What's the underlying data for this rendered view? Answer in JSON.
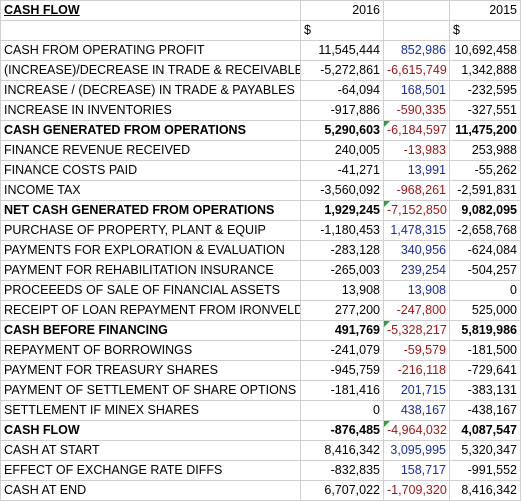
{
  "sheet": {
    "header": {
      "label": "CASH FLOW",
      "year_2016": "2016",
      "diff": "",
      "year_2015": "2015"
    },
    "currency_row": {
      "label": "",
      "c2016": "$",
      "diff": "",
      "c2015": "$"
    },
    "rows": [
      {
        "label": "CASH FROM OPERATING PROFIT",
        "v2016": "11,545,444",
        "diff": "852,986",
        "diff_sign": "pos",
        "v2015": "10,692,458",
        "bold": false,
        "flag": false
      },
      {
        "label": "(INCREASE)/DECREASE IN TRADE & RECEIVABLES",
        "v2016": "-5,272,861",
        "diff": "-6,615,749",
        "diff_sign": "neg",
        "v2015": "1,342,888",
        "bold": false,
        "flag": false
      },
      {
        "label": "INCREASE / (DECREASE) IN TRADE & PAYABLES",
        "v2016": "-64,094",
        "diff": "168,501",
        "diff_sign": "pos",
        "v2015": "-232,595",
        "bold": false,
        "flag": false
      },
      {
        "label": "INCREASE IN INVENTORIES",
        "v2016": "-917,886",
        "diff": "-590,335",
        "diff_sign": "neg",
        "v2015": "-327,551",
        "bold": false,
        "flag": false
      },
      {
        "label": "CASH GENERATED FROM OPERATIONS",
        "v2016": "5,290,603",
        "diff": "-6,184,597",
        "diff_sign": "neg",
        "v2015": "11,475,200",
        "bold": true,
        "flag": true
      },
      {
        "label": "FINANCE REVENUE RECEIVED",
        "v2016": "240,005",
        "diff": "-13,983",
        "diff_sign": "neg",
        "v2015": "253,988",
        "bold": false,
        "flag": false
      },
      {
        "label": "FINANCE COSTS PAID",
        "v2016": "-41,271",
        "diff": "13,991",
        "diff_sign": "pos",
        "v2015": "-55,262",
        "bold": false,
        "flag": false
      },
      {
        "label": "INCOME TAX",
        "v2016": "-3,560,092",
        "diff": "-968,261",
        "diff_sign": "neg",
        "v2015": "-2,591,831",
        "bold": false,
        "flag": false
      },
      {
        "label": "NET CASH GENERATED FROM OPERATIONS",
        "v2016": "1,929,245",
        "diff": "-7,152,850",
        "diff_sign": "neg",
        "v2015": "9,082,095",
        "bold": true,
        "flag": true
      },
      {
        "label": "PURCHASE OF PROPERTY, PLANT & EQUIP",
        "v2016": "-1,180,453",
        "diff": "1,478,315",
        "diff_sign": "pos",
        "v2015": "-2,658,768",
        "bold": false,
        "flag": false
      },
      {
        "label": "PAYMENTS FOR EXPLORATION & EVALUATION",
        "v2016": "-283,128",
        "diff": "340,956",
        "diff_sign": "pos",
        "v2015": "-624,084",
        "bold": false,
        "flag": false
      },
      {
        "label": "PAYMENT FOR REHABILITATION INSURANCE",
        "v2016": "-265,003",
        "diff": "239,254",
        "diff_sign": "pos",
        "v2015": "-504,257",
        "bold": false,
        "flag": false
      },
      {
        "label": "PROCEEEDS OF SALE OF FINANCIAL ASSETS",
        "v2016": "13,908",
        "diff": "13,908",
        "diff_sign": "pos",
        "v2015": "0",
        "bold": false,
        "flag": false
      },
      {
        "label": "RECEIPT OF LOAN REPAYMENT FROM IRONVELD",
        "v2016": "277,200",
        "diff": "-247,800",
        "diff_sign": "neg",
        "v2015": "525,000",
        "bold": false,
        "flag": false
      },
      {
        "label": "CASH BEFORE FINANCING",
        "v2016": "491,769",
        "diff": "-5,328,217",
        "diff_sign": "neg",
        "v2015": "5,819,986",
        "bold": true,
        "flag": true
      },
      {
        "label": "REPAYMENT OF BORROWINGS",
        "v2016": "-241,079",
        "diff": "-59,579",
        "diff_sign": "neg",
        "v2015": "-181,500",
        "bold": false,
        "flag": false
      },
      {
        "label": "PAYMENT FOR TREASURY SHARES",
        "v2016": "-945,759",
        "diff": "-216,118",
        "diff_sign": "neg",
        "v2015": "-729,641",
        "bold": false,
        "flag": false
      },
      {
        "label": "PAYMENT OF SETTLEMENT OF SHARE OPTIONS",
        "v2016": "-181,416",
        "diff": "201,715",
        "diff_sign": "pos",
        "v2015": "-383,131",
        "bold": false,
        "flag": false
      },
      {
        "label": "SETTLEMENT IF MINEX SHARES",
        "v2016": "0",
        "diff": "438,167",
        "diff_sign": "pos",
        "v2015": "-438,167",
        "bold": false,
        "flag": false
      },
      {
        "label": "CASH FLOW",
        "v2016": "-876,485",
        "diff": "-4,964,032",
        "diff_sign": "neg",
        "v2015": "4,087,547",
        "bold": true,
        "flag": true
      },
      {
        "label": "CASH AT START",
        "v2016": "8,416,342",
        "diff": "3,095,995",
        "diff_sign": "pos",
        "v2015": "5,320,347",
        "bold": false,
        "flag": false
      },
      {
        "label": "EFFECT OF EXCHANGE RATE DIFFS",
        "v2016": "-832,835",
        "diff": "158,717",
        "diff_sign": "pos",
        "v2015": "-991,552",
        "bold": false,
        "flag": false
      },
      {
        "label": "CASH AT END",
        "v2016": "6,707,022",
        "diff": "-1,709,320",
        "diff_sign": "neg",
        "v2015": "8,416,342",
        "bold": false,
        "flag": false
      }
    ]
  },
  "colors": {
    "positive_diff": "#1a2ea0",
    "negative_diff": "#a01818",
    "comment_flag": "#2e9e3e",
    "gridline": "#d0d0d0"
  }
}
